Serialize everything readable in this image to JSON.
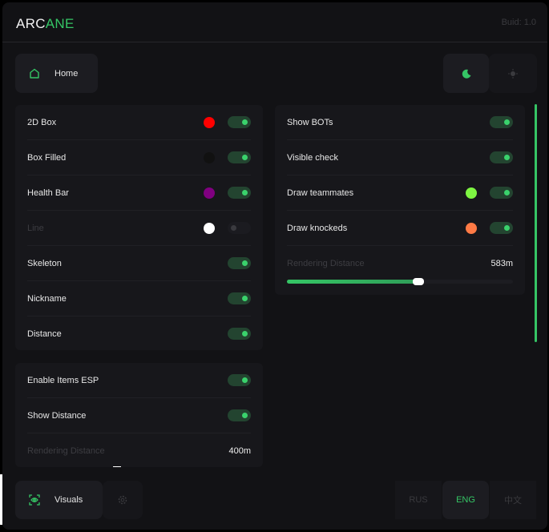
{
  "header": {
    "logo_part1": "ARC",
    "logo_part2": "ANE",
    "build": "Buid: 1.0"
  },
  "nav": {
    "home_label": "Home",
    "theme_dark_icon": "moon-icon",
    "theme_light_icon": "sun-icon"
  },
  "players_panel": {
    "rows": [
      {
        "label": "2D Box",
        "color": "#ff0000",
        "enabled": true
      },
      {
        "label": "Box Filled",
        "color": "#111111",
        "enabled": true
      },
      {
        "label": "Health Bar",
        "color": "#800080",
        "enabled": true
      },
      {
        "label": "Line",
        "color": "#ffffff",
        "enabled": false
      },
      {
        "label": "Skeleton",
        "enabled": true
      },
      {
        "label": "Nickname",
        "enabled": true
      },
      {
        "label": "Distance",
        "enabled": true
      }
    ]
  },
  "extra_panel": {
    "rows": [
      {
        "label": "Show BOTs",
        "enabled": true
      },
      {
        "label": "Visible check",
        "enabled": true
      },
      {
        "label": "Draw teammates",
        "color": "#7ef542",
        "enabled": true
      },
      {
        "label": "Draw knockeds",
        "color": "#ff7a45",
        "enabled": true
      }
    ],
    "distance_label": "Rendering Distance",
    "distance_value": "583m",
    "distance_fraction": 0.583
  },
  "items_panel": {
    "rows": [
      {
        "label": "Enable Items ESP",
        "enabled": true
      },
      {
        "label": "Show Distance",
        "enabled": true
      }
    ],
    "distance_label": "Rendering Distance",
    "distance_value": "400m"
  },
  "footer": {
    "visuals_label": "Visuals",
    "languages": [
      "RUS",
      "ENG",
      "中文"
    ],
    "active_language": "ENG"
  },
  "colors": {
    "accent": "#35c565",
    "background": "#121215"
  }
}
